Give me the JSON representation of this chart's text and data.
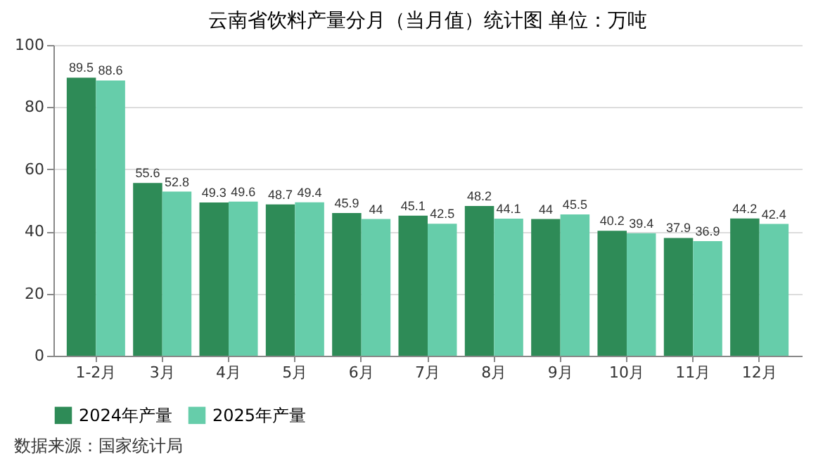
{
  "chart_data": {
    "type": "bar",
    "title": "云南省饮料产量分月（当月值）统计图  单位：万吨",
    "categories": [
      "1-2月",
      "3月",
      "4月",
      "5月",
      "6月",
      "7月",
      "8月",
      "9月",
      "10月",
      "11月",
      "12月"
    ],
    "series": [
      {
        "name": "2024年产量",
        "color": "#2e8b57",
        "values": [
          89.5,
          55.6,
          49.3,
          48.7,
          45.9,
          45.1,
          48.2,
          44,
          40.2,
          37.9,
          44.2
        ]
      },
      {
        "name": "2025年产量",
        "color": "#66cdaa",
        "values": [
          88.6,
          52.8,
          49.6,
          49.4,
          44,
          42.5,
          44.1,
          45.5,
          39.4,
          36.9,
          42.4
        ]
      }
    ],
    "ylim": [
      0,
      100
    ],
    "yticks": [
      0,
      20,
      40,
      60,
      80,
      100
    ],
    "grid": "y",
    "legend": "bottom",
    "data_labels": true,
    "annotations": [
      "数据来源：国家统计局"
    ]
  }
}
